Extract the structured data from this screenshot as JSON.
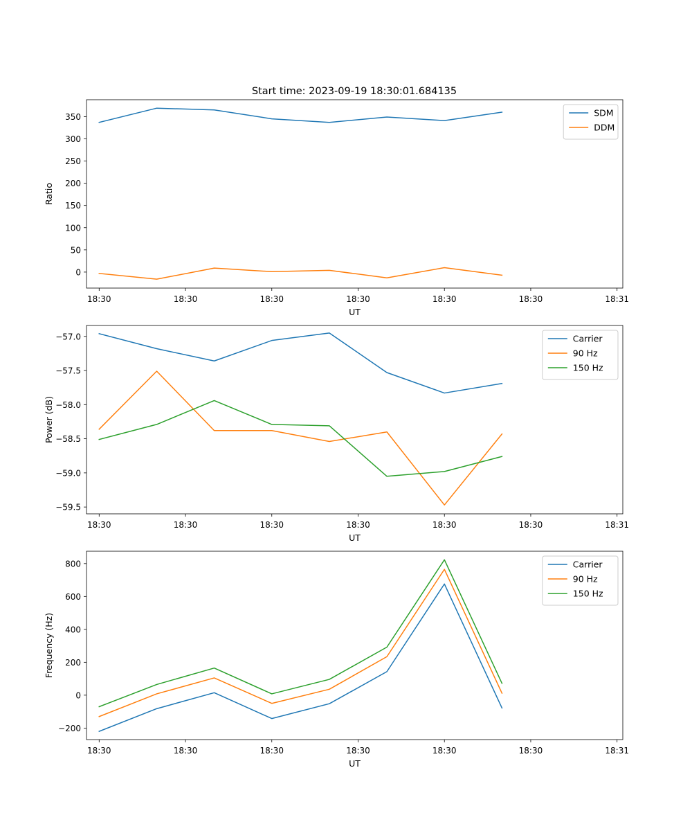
{
  "title": "Start time: 2023-09-19 18:30:01.684135",
  "colors": {
    "c0": "#1f77b4",
    "c1": "#ff7f0e",
    "c2": "#2ca02c"
  },
  "chart_data": [
    {
      "type": "line",
      "xlabel": "UT",
      "ylabel": "Ratio",
      "x": [
        1,
        2,
        3,
        4,
        5,
        6,
        7,
        8
      ],
      "xlim": [
        0.78,
        10.1
      ],
      "xticks": [
        1,
        2.5,
        4,
        5.5,
        7,
        8.5,
        10
      ],
      "xtick_labels": [
        "18:30",
        "18:30",
        "18:30",
        "18:30",
        "18:30",
        "18:30",
        "18:31"
      ],
      "ylim": [
        -36,
        388
      ],
      "yticks": [
        0,
        50,
        100,
        150,
        200,
        250,
        300,
        350
      ],
      "ytick_labels": [
        "0",
        "50",
        "100",
        "150",
        "200",
        "250",
        "300",
        "350"
      ],
      "series": [
        {
          "name": "SDM",
          "values": [
            337,
            369,
            365,
            345,
            337,
            349,
            341,
            360
          ]
        },
        {
          "name": "DDM",
          "values": [
            -3,
            -16,
            9,
            1,
            4,
            -13,
            10,
            -7
          ]
        }
      ],
      "legend": "top-right"
    },
    {
      "type": "line",
      "xlabel": "UT",
      "ylabel": "Power (dB)",
      "x": [
        1,
        2,
        3,
        4,
        5,
        6,
        7,
        8
      ],
      "xlim": [
        0.78,
        10.1
      ],
      "xticks": [
        1,
        2.5,
        4,
        5.5,
        7,
        8.5,
        10
      ],
      "xtick_labels": [
        "18:30",
        "18:30",
        "18:30",
        "18:30",
        "18:30",
        "18:30",
        "18:31"
      ],
      "ylim": [
        -59.6,
        -56.84
      ],
      "yticks": [
        -59.5,
        -59.0,
        -58.5,
        -58.0,
        -57.5,
        -57.0
      ],
      "ytick_labels": [
        "−59.5",
        "−59.0",
        "−58.5",
        "−58.0",
        "−57.5",
        "−57.0"
      ],
      "series": [
        {
          "name": "Carrier",
          "values": [
            -56.96,
            -57.18,
            -57.36,
            -57.06,
            -56.95,
            -57.53,
            -57.83,
            -57.69
          ]
        },
        {
          "name": "90 Hz",
          "values": [
            -58.36,
            -57.51,
            -58.38,
            -58.38,
            -58.54,
            -58.4,
            -59.47,
            -58.43
          ]
        },
        {
          "name": "150 Hz",
          "values": [
            -58.51,
            -58.29,
            -57.94,
            -58.29,
            -58.31,
            -59.05,
            -58.98,
            -58.76
          ]
        }
      ],
      "legend": "top-right"
    },
    {
      "type": "line",
      "xlabel": "UT",
      "ylabel": "Frequency (Hz)",
      "x": [
        1,
        2,
        3,
        4,
        5,
        6,
        7,
        8
      ],
      "xlim": [
        0.78,
        10.1
      ],
      "xticks": [
        1,
        2.5,
        4,
        5.5,
        7,
        8.5,
        10
      ],
      "xtick_labels": [
        "18:30",
        "18:30",
        "18:30",
        "18:30",
        "18:30",
        "18:30",
        "18:31"
      ],
      "ylim": [
        -270,
        875
      ],
      "yticks": [
        -200,
        0,
        200,
        400,
        600,
        800
      ],
      "ytick_labels": [
        "−200",
        "0",
        "200",
        "400",
        "600",
        "800"
      ],
      "series": [
        {
          "name": "Carrier",
          "values": [
            -220,
            -82,
            15,
            -142,
            -52,
            143,
            676,
            -78
          ]
        },
        {
          "name": "90 Hz",
          "values": [
            -130,
            8,
            105,
            -50,
            36,
            234,
            765,
            12
          ]
        },
        {
          "name": "150 Hz",
          "values": [
            -70,
            65,
            165,
            8,
            96,
            292,
            823,
            72
          ]
        }
      ],
      "legend": "top-right"
    }
  ]
}
